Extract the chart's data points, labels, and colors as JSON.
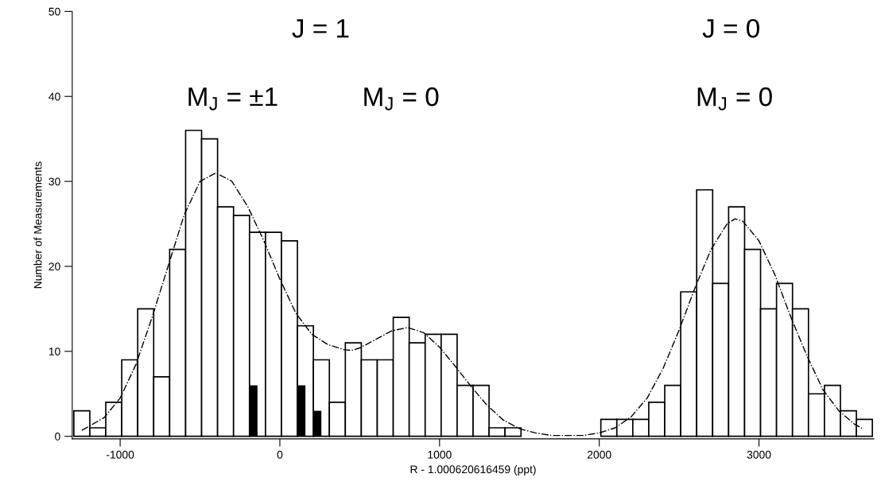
{
  "chart_data": {
    "type": "histogram",
    "xlabel": "R - 1.000620616459 (ppt)",
    "ylabel": "Number of Measurements",
    "xlim": [
      -1300,
      3720
    ],
    "ylim": [
      -0.3,
      50
    ],
    "xticks": [
      -1000,
      0,
      1000,
      2000,
      3000
    ],
    "yticks": [
      0,
      10,
      20,
      30,
      40,
      50
    ],
    "grid": false,
    "legend": false,
    "series": [
      {
        "color": "#ffffff",
        "bins": [
          -1290,
          -1190,
          -1090,
          -990,
          -890,
          -790,
          -690,
          -590,
          -490,
          -390,
          -290,
          -190,
          -90,
          10,
          110,
          210,
          310,
          410,
          510,
          610,
          710,
          810,
          910,
          1010,
          1110,
          1210,
          1310,
          1410,
          1510,
          1610,
          1710,
          1810,
          1910,
          2010,
          2110,
          2210,
          2310,
          2410,
          2510,
          2610,
          2710,
          2810,
          2910,
          3010,
          3110,
          3210,
          3310,
          3410,
          3510,
          3610,
          3710
        ],
        "values": [
          3,
          1,
          4,
          9,
          15,
          7,
          22,
          36,
          35,
          27,
          26,
          24,
          24,
          23,
          13,
          9,
          4,
          11,
          9,
          9,
          14,
          11,
          12,
          12,
          6,
          6,
          1,
          1,
          0,
          0,
          0,
          0,
          0,
          2,
          2,
          2,
          4,
          6,
          17,
          29,
          18,
          27,
          22,
          15,
          18,
          15,
          5,
          6,
          3,
          2
        ]
      },
      {
        "type": "bar",
        "color": "#000000",
        "x": [
          -165,
          135,
          235
        ],
        "values": [
          6,
          6,
          3
        ]
      },
      {
        "type": "line",
        "color": "#000000",
        "line_style": "dashdot",
        "x": [
          -1240,
          -1100,
          -1000,
          -900,
          -800,
          -700,
          -600,
          -500,
          -400,
          -300,
          -200,
          -100,
          0,
          100,
          200,
          300,
          400,
          450,
          500,
          600,
          700,
          800,
          900,
          1000,
          1100,
          1200,
          1300,
          1400,
          1500,
          1600,
          1700,
          1800,
          1900,
          2000,
          2100,
          2200,
          2300,
          2400,
          2500,
          2600,
          2700,
          2800,
          2850,
          2900,
          3000,
          3100,
          3200,
          3300,
          3400,
          3500,
          3600,
          3650
        ],
        "values": [
          0.7,
          2.2,
          4.5,
          8.5,
          14,
          20,
          26,
          30,
          31,
          30,
          27,
          23,
          18.5,
          14.5,
          12,
          10.8,
          10.2,
          10.1,
          10.4,
          11.4,
          12.4,
          12.8,
          12.2,
          10.5,
          8.2,
          5.8,
          3.6,
          1.9,
          0.9,
          0.4,
          0.1,
          0.1,
          0.1,
          0.4,
          1,
          2.3,
          4.5,
          8,
          12.5,
          17.5,
          22,
          25,
          25.6,
          25.3,
          23,
          19,
          14,
          9.5,
          5.5,
          3,
          1.4,
          0.9
        ]
      }
    ],
    "annotations": [
      "J = 1",
      "J = 0",
      "M$_{J}$ = ±1",
      "M$_{J}$ = 0",
      "M$_{J}$ = 0"
    ]
  }
}
